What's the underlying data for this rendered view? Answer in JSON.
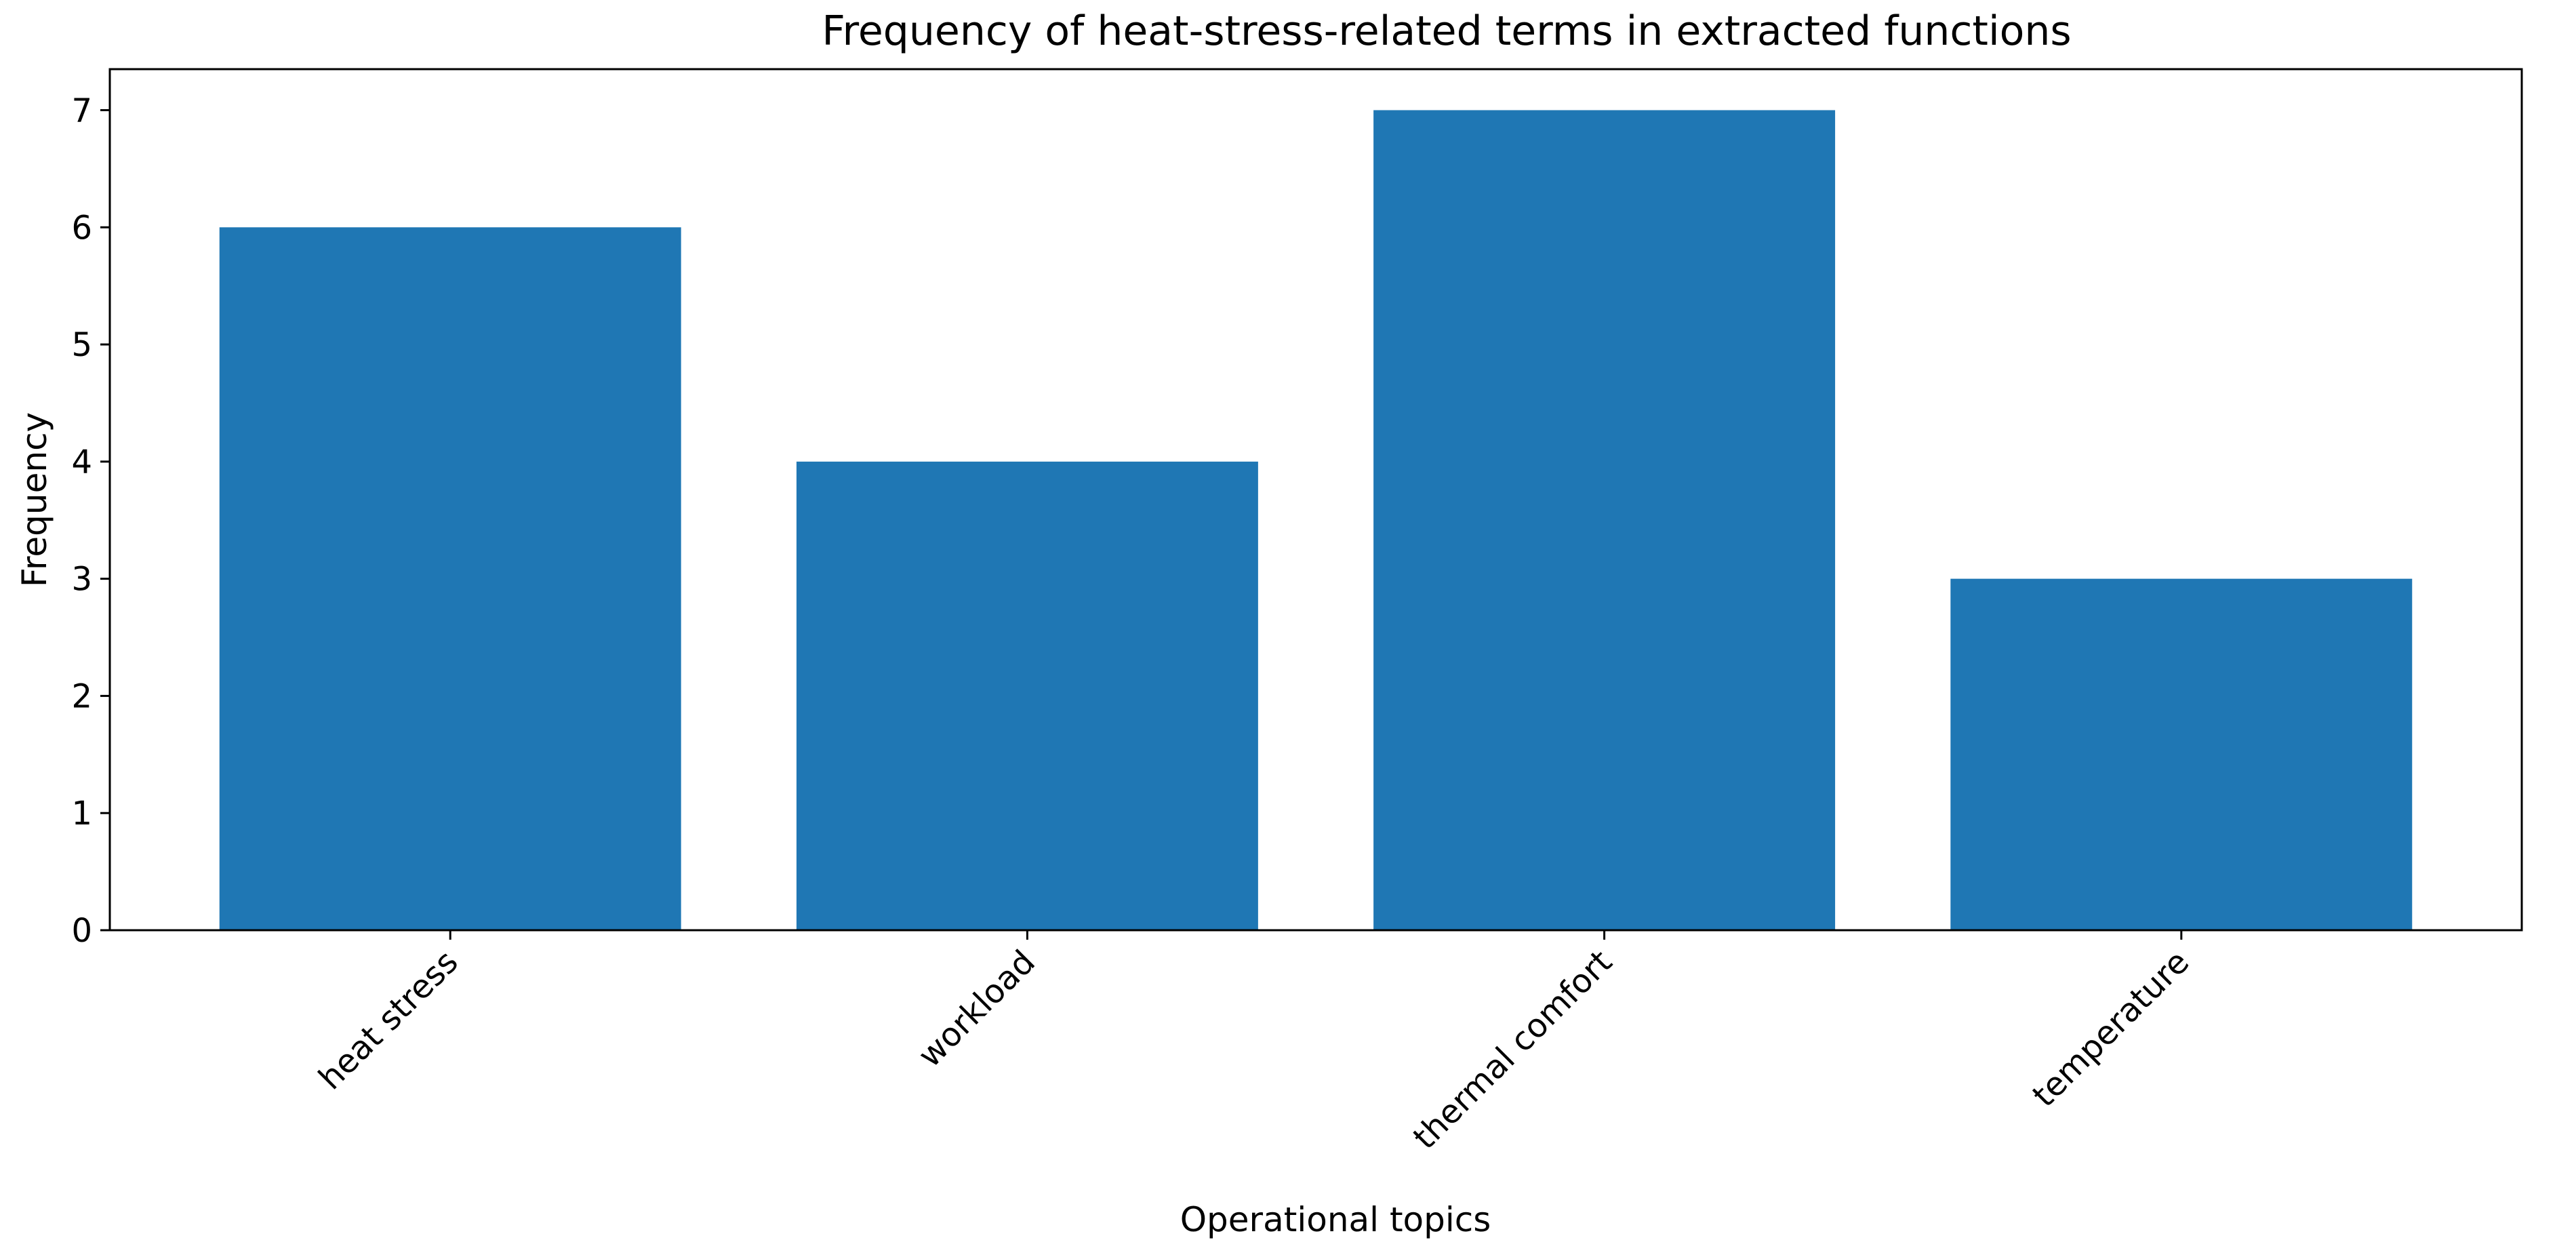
{
  "chart_data": {
    "type": "bar",
    "title": "Frequency of heat-stress-related terms in extracted functions",
    "xlabel": "Operational topics",
    "ylabel": "Frequency",
    "categories": [
      "heat stress",
      "workload",
      "thermal comfort",
      "temperature"
    ],
    "values": [
      6,
      4,
      7,
      3
    ],
    "ylim": [
      0,
      7.35
    ],
    "yticks": [
      "0",
      "1",
      "2",
      "3",
      "4",
      "5",
      "6",
      "7"
    ],
    "grid": false,
    "legend": "none",
    "bar_color": "#1f77b4"
  }
}
